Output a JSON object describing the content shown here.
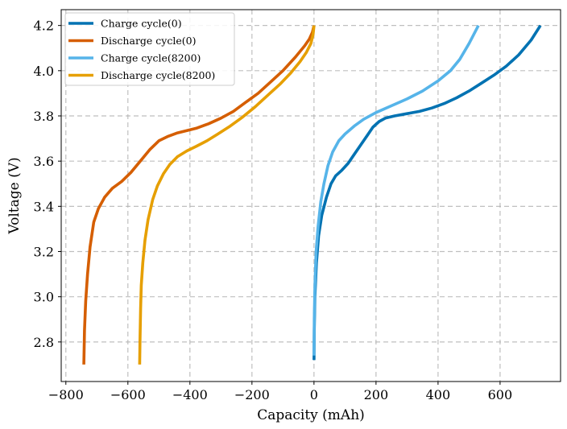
{
  "chart_data": {
    "type": "line",
    "xlabel": "Capacity (mAh)",
    "ylabel": "Voltage (V)",
    "xlim": [
      -815,
      795
    ],
    "ylim": [
      2.625,
      4.27
    ],
    "xticks": [
      -800,
      -600,
      -400,
      -200,
      0,
      200,
      400,
      600
    ],
    "xtick_labels": [
      "−800",
      "−600",
      "−400",
      "−200",
      "0",
      "200",
      "400",
      "600"
    ],
    "yticks": [
      2.8,
      3.0,
      3.2,
      3.4,
      3.6,
      3.8,
      4.0,
      4.2
    ],
    "ytick_labels": [
      "2.8",
      "3.0",
      "3.2",
      "3.4",
      "3.6",
      "3.8",
      "4.0",
      "4.2"
    ],
    "grid": true,
    "legend_position": "top-left",
    "series": [
      {
        "name": "Charge cycle(0)",
        "color": "#0072b2",
        "points": [
          [
            0,
            2.72
          ],
          [
            1,
            2.85
          ],
          [
            3,
            3.0
          ],
          [
            8,
            3.15
          ],
          [
            15,
            3.27
          ],
          [
            25,
            3.36
          ],
          [
            40,
            3.44
          ],
          [
            55,
            3.5
          ],
          [
            70,
            3.535
          ],
          [
            90,
            3.56
          ],
          [
            110,
            3.59
          ],
          [
            130,
            3.63
          ],
          [
            150,
            3.67
          ],
          [
            170,
            3.71
          ],
          [
            190,
            3.75
          ],
          [
            210,
            3.775
          ],
          [
            230,
            3.79
          ],
          [
            260,
            3.8
          ],
          [
            300,
            3.81
          ],
          [
            340,
            3.82
          ],
          [
            380,
            3.835
          ],
          [
            420,
            3.855
          ],
          [
            460,
            3.88
          ],
          [
            500,
            3.91
          ],
          [
            540,
            3.945
          ],
          [
            580,
            3.98
          ],
          [
            620,
            4.02
          ],
          [
            660,
            4.07
          ],
          [
            700,
            4.135
          ],
          [
            730,
            4.2
          ]
        ]
      },
      {
        "name": "Discharge cycle(0)",
        "color": "#d55e00",
        "points": [
          [
            0,
            4.2
          ],
          [
            -5,
            4.17
          ],
          [
            -15,
            4.14
          ],
          [
            -30,
            4.11
          ],
          [
            -60,
            4.06
          ],
          [
            -100,
            4.0
          ],
          [
            -140,
            3.95
          ],
          [
            -180,
            3.9
          ],
          [
            -220,
            3.86
          ],
          [
            -260,
            3.82
          ],
          [
            -300,
            3.79
          ],
          [
            -340,
            3.765
          ],
          [
            -380,
            3.745
          ],
          [
            -410,
            3.735
          ],
          [
            -440,
            3.725
          ],
          [
            -470,
            3.71
          ],
          [
            -500,
            3.69
          ],
          [
            -530,
            3.65
          ],
          [
            -560,
            3.6
          ],
          [
            -590,
            3.55
          ],
          [
            -620,
            3.51
          ],
          [
            -650,
            3.48
          ],
          [
            -675,
            3.44
          ],
          [
            -695,
            3.39
          ],
          [
            -710,
            3.33
          ],
          [
            -722,
            3.22
          ],
          [
            -730,
            3.1
          ],
          [
            -736,
            2.98
          ],
          [
            -740,
            2.85
          ],
          [
            -742,
            2.7
          ]
        ]
      },
      {
        "name": "Charge cycle(8200)",
        "color": "#56b4e9",
        "points": [
          [
            0,
            2.74
          ],
          [
            1,
            2.9
          ],
          [
            3,
            3.05
          ],
          [
            7,
            3.2
          ],
          [
            13,
            3.31
          ],
          [
            22,
            3.42
          ],
          [
            32,
            3.5
          ],
          [
            45,
            3.58
          ],
          [
            60,
            3.64
          ],
          [
            80,
            3.69
          ],
          [
            100,
            3.72
          ],
          [
            130,
            3.755
          ],
          [
            160,
            3.785
          ],
          [
            200,
            3.815
          ],
          [
            250,
            3.845
          ],
          [
            300,
            3.875
          ],
          [
            350,
            3.91
          ],
          [
            400,
            3.955
          ],
          [
            440,
            4.0
          ],
          [
            470,
            4.05
          ],
          [
            500,
            4.12
          ],
          [
            530,
            4.2
          ]
        ]
      },
      {
        "name": "Discharge cycle(8200)",
        "color": "#e69f00",
        "points": [
          [
            0,
            4.2
          ],
          [
            -3,
            4.16
          ],
          [
            -10,
            4.12
          ],
          [
            -25,
            4.08
          ],
          [
            -45,
            4.04
          ],
          [
            -75,
            3.99
          ],
          [
            -110,
            3.94
          ],
          [
            -150,
            3.89
          ],
          [
            -190,
            3.84
          ],
          [
            -230,
            3.795
          ],
          [
            -270,
            3.755
          ],
          [
            -310,
            3.72
          ],
          [
            -345,
            3.69
          ],
          [
            -380,
            3.665
          ],
          [
            -410,
            3.645
          ],
          [
            -440,
            3.62
          ],
          [
            -465,
            3.585
          ],
          [
            -485,
            3.545
          ],
          [
            -505,
            3.49
          ],
          [
            -520,
            3.43
          ],
          [
            -535,
            3.34
          ],
          [
            -545,
            3.25
          ],
          [
            -552,
            3.15
          ],
          [
            -557,
            3.05
          ],
          [
            -559,
            2.95
          ],
          [
            -561,
            2.8
          ],
          [
            -562,
            2.7
          ]
        ]
      }
    ]
  }
}
